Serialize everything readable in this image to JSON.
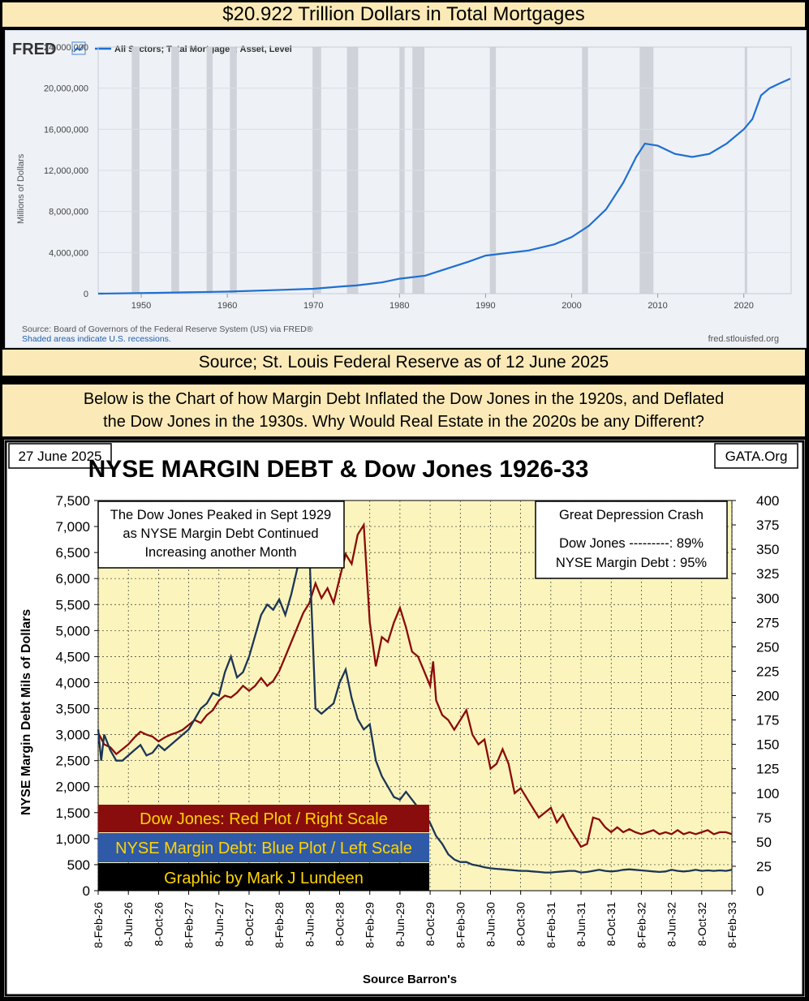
{
  "top_title": "$20.922 Trillion Dollars in Total Mortgages",
  "mid_caption": "Source; St. Louis Federal Reserve  as of 12 June 2025",
  "description": {
    "line1": "Below is the Chart of how Margin Debt Inflated the Dow Jones in the 1920s, and Deflated",
    "line2": "the Dow Jones in the 1930s. Why Would Real Estate in the 2020s be any Different?"
  },
  "colors": {
    "band": "#fbeab7",
    "fred_line": "#1f6fd0",
    "recession": "#cfd3d9",
    "dow_red": "#8b0a0a",
    "margin_blue": "#1d3557",
    "plot_bg": "#fbf5bd"
  },
  "chart_data": [
    {
      "type": "line",
      "brand": "FRED",
      "legend": "All Sectors; Total Mortgages; Asset, Level",
      "ylabel": "Millions of Dollars",
      "ylim": [
        0,
        24000000
      ],
      "y_ticks": [
        "0",
        "4,000,000",
        "8,000,000",
        "12,000,000",
        "16,000,000",
        "20,000,000",
        "24,000,000"
      ],
      "xlim": [
        1945,
        2025.5
      ],
      "x_ticks": [
        "1950",
        "1960",
        "1970",
        "1980",
        "1990",
        "2000",
        "2010",
        "2020"
      ],
      "recessions": [
        [
          1948.9,
          1949.8
        ],
        [
          1953.5,
          1954.4
        ],
        [
          1957.6,
          1958.3
        ],
        [
          1960.3,
          1961.1
        ],
        [
          1969.9,
          1970.9
        ],
        [
          1973.9,
          1975.2
        ],
        [
          1980.0,
          1980.6
        ],
        [
          1981.5,
          1982.9
        ],
        [
          1990.5,
          1991.2
        ],
        [
          2001.2,
          2001.9
        ],
        [
          2007.9,
          2009.5
        ],
        [
          2020.1,
          2020.4
        ]
      ],
      "series": [
        {
          "name": "All Sectors; Total Mortgages; Asset, Level",
          "x": [
            1945,
            1952,
            1955,
            1960,
            1965,
            1970,
            1973,
            1975,
            1978,
            1980,
            1983,
            1985,
            1988,
            1990,
            1993,
            1995,
            1998,
            2000,
            2002,
            2004,
            2006,
            2007.5,
            2008.5,
            2010,
            2012,
            2014,
            2016,
            2018,
            2020,
            2021,
            2022,
            2023,
            2024,
            2025.4
          ],
          "y": [
            0,
            80000,
            130000,
            200000,
            330000,
            470000,
            680000,
            800000,
            1100000,
            1450000,
            1750000,
            2300000,
            3100000,
            3700000,
            4000000,
            4200000,
            4800000,
            5500000,
            6600000,
            8200000,
            10800000,
            13300000,
            14600000,
            14400000,
            13600000,
            13300000,
            13600000,
            14600000,
            16000000,
            17000000,
            19300000,
            20000000,
            20400000,
            20922000
          ]
        }
      ],
      "source": "Source: Board of Governors of the Federal Reserve System (US) via FRED®",
      "note": "Shaded areas indicate U.S. recessions.",
      "site": "fred.stlouisfed.org"
    },
    {
      "type": "line",
      "title": "NYSE MARGIN DEBT & Dow Jones 1926-33",
      "date_label": "27 June 2025",
      "site": "GATA.Org",
      "ylabel_left": "NYSE Margin Debt Mils of Dollars",
      "xlabel": "Source Barron's",
      "left_ticks": [
        "0",
        "500",
        "1,000",
        "1,500",
        "2,000",
        "2,500",
        "3,000",
        "3,500",
        "4,000",
        "4,500",
        "5,000",
        "5,500",
        "6,000",
        "6,500",
        "7,000",
        "7,500"
      ],
      "right_ticks": [
        "0",
        "25",
        "50",
        "75",
        "100",
        "125",
        "150",
        "175",
        "200",
        "225",
        "250",
        "275",
        "300",
        "325",
        "350",
        "375",
        "400"
      ],
      "ylim_left": [
        0,
        7500
      ],
      "ylim_right": [
        0,
        400
      ],
      "x_ticks": [
        "8-Feb-26",
        "8-Jun-26",
        "8-Oct-26",
        "8-Feb-27",
        "8-Jun-27",
        "8-Oct-27",
        "8-Feb-28",
        "8-Jun-28",
        "8-Oct-28",
        "8-Feb-29",
        "8-Jun-29",
        "8-Oct-29",
        "8-Feb-30",
        "8-Jun-30",
        "8-Oct-30",
        "8-Feb-31",
        "8-Jun-31",
        "8-Oct-31",
        "8-Feb-32",
        "8-Jun-32",
        "8-Oct-32",
        "8-Feb-33"
      ],
      "annotation_left": [
        "The Dow Jones Peaked in Sept 1929",
        "as NYSE Margin Debt Continued",
        "Increasing another Month"
      ],
      "annotation_right": {
        "title": "Great Depression Crash",
        "line1": "Dow Jones ---------: 89%",
        "line2": "NYSE Margin Debt : 95%"
      },
      "legend": [
        "Dow Jones: Red Plot / Right Scale",
        "NYSE Margin Debt: Blue Plot / Left Scale",
        "Graphic by Mark J Lundeen"
      ],
      "series": [
        {
          "name": "Dow Jones",
          "x": [
            0,
            0.2,
            0.4,
            0.6,
            0.8,
            1.0,
            1.2,
            1.4,
            1.6,
            1.8,
            2.0,
            2.2,
            2.4,
            2.6,
            2.8,
            3.0,
            3.2,
            3.4,
            3.6,
            3.8,
            4.0,
            4.2,
            4.4,
            4.6,
            4.8,
            5.0,
            5.2,
            5.4,
            5.6,
            5.8,
            6.0,
            6.2,
            6.4,
            6.6,
            6.8,
            7.0,
            7.2,
            7.4,
            7.6,
            7.8,
            8.0,
            8.2,
            8.4,
            8.6,
            8.8,
            9.0,
            9.2,
            9.4,
            9.6,
            9.8,
            10.0,
            10.2,
            10.4,
            10.6,
            10.8,
            11.0,
            11.1,
            11.2,
            11.4,
            11.6,
            11.8,
            12.0,
            12.2,
            12.4,
            12.6,
            12.8,
            13.0,
            13.2,
            13.4,
            13.6,
            13.8,
            14.0,
            14.2,
            14.4,
            14.6,
            14.8,
            15.0,
            15.2,
            15.4,
            15.6,
            15.8,
            16.0,
            16.2,
            16.4,
            16.6,
            16.8,
            17.0,
            17.2,
            17.4,
            17.6,
            17.8,
            18.0,
            18.2,
            18.4,
            18.6,
            18.8,
            19.0,
            19.2,
            19.4,
            19.6,
            19.8,
            20.0,
            20.2,
            20.4,
            20.6,
            20.8,
            21.0
          ],
          "y": [
            162,
            150,
            147,
            140,
            145,
            150,
            157,
            163,
            160,
            158,
            153,
            157,
            160,
            162,
            165,
            170,
            175,
            172,
            180,
            185,
            195,
            200,
            198,
            203,
            210,
            205,
            210,
            218,
            210,
            215,
            225,
            240,
            255,
            270,
            285,
            295,
            315,
            300,
            310,
            295,
            320,
            345,
            335,
            365,
            375,
            275,
            230,
            260,
            255,
            275,
            290,
            270,
            245,
            240,
            225,
            210,
            235,
            195,
            180,
            175,
            165,
            175,
            185,
            160,
            150,
            155,
            125,
            130,
            145,
            130,
            100,
            105,
            95,
            85,
            75,
            80,
            85,
            70,
            78,
            65,
            55,
            45,
            48,
            75,
            73,
            65,
            60,
            65,
            60,
            63,
            60,
            58,
            60,
            62,
            58,
            60,
            58,
            62,
            58,
            60,
            58,
            60,
            62,
            58,
            60,
            60,
            58
          ]
        },
        {
          "name": "NYSE Margin Debt",
          "x": [
            0,
            0.1,
            0.2,
            0.4,
            0.6,
            0.8,
            1.0,
            1.2,
            1.4,
            1.6,
            1.8,
            2.0,
            2.2,
            2.4,
            2.6,
            2.8,
            3.0,
            3.2,
            3.4,
            3.6,
            3.8,
            4.0,
            4.2,
            4.4,
            4.6,
            4.8,
            5.0,
            5.2,
            5.4,
            5.6,
            5.8,
            6.0,
            6.2,
            6.4,
            6.6,
            6.8,
            7.0,
            7.2,
            7.4,
            7.6,
            7.8,
            8.0,
            8.2,
            8.4,
            8.6,
            8.8,
            9.0,
            9.2,
            9.4,
            9.6,
            9.8,
            10.0,
            10.2,
            10.4,
            10.6,
            10.8,
            11.0,
            11.2,
            11.4,
            11.6,
            11.8,
            12.0,
            12.2,
            12.4,
            12.6,
            12.8,
            13.0,
            13.2,
            13.4,
            13.6,
            13.8,
            14.0,
            14.2,
            14.4,
            14.6,
            14.8,
            15.0,
            15.2,
            15.4,
            15.6,
            15.8,
            16.0,
            16.2,
            16.4,
            16.6,
            16.8,
            17.0,
            17.2,
            17.4,
            17.6,
            17.8,
            18.0,
            18.2,
            18.4,
            18.6,
            18.8,
            19.0,
            19.2,
            19.4,
            19.6,
            19.8,
            20.0,
            20.2,
            20.4,
            20.6,
            20.8,
            21.0
          ],
          "y": [
            3100,
            2500,
            3000,
            2700,
            2500,
            2500,
            2600,
            2700,
            2800,
            2600,
            2650,
            2800,
            2700,
            2800,
            2900,
            3000,
            3100,
            3300,
            3500,
            3600,
            3800,
            3750,
            4200,
            4500,
            4100,
            4200,
            4500,
            4900,
            5300,
            5500,
            5400,
            5600,
            5300,
            5700,
            6200,
            6700,
            6500,
            3500,
            3400,
            3500,
            3600,
            4000,
            4250,
            3700,
            3300,
            3100,
            3200,
            2500,
            2200,
            2000,
            1800,
            1750,
            1900,
            1750,
            1600,
            1500,
            1300,
            1050,
            900,
            700,
            600,
            550,
            550,
            500,
            480,
            450,
            430,
            420,
            410,
            400,
            390,
            380,
            380,
            370,
            360,
            350,
            350,
            360,
            370,
            380,
            380,
            350,
            360,
            380,
            400,
            380,
            370,
            380,
            400,
            410,
            400,
            390,
            380,
            370,
            360,
            370,
            400,
            380,
            370,
            380,
            400,
            380,
            390,
            380,
            390,
            380,
            400
          ]
        }
      ]
    }
  ]
}
